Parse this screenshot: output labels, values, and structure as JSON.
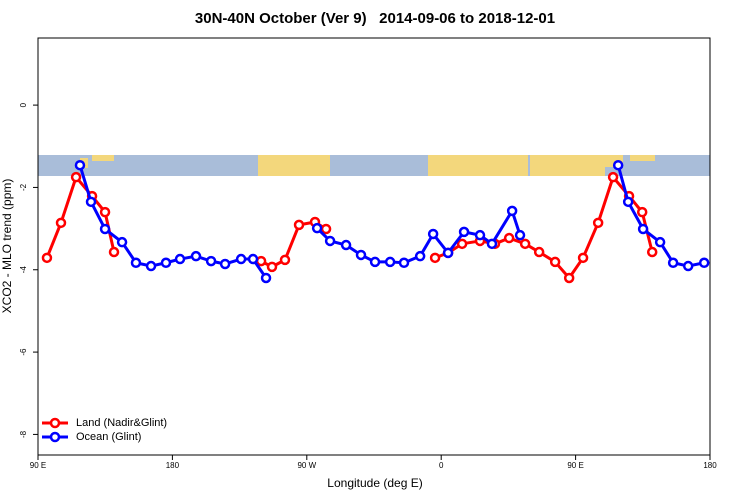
{
  "chart_data": {
    "type": "line",
    "title": "30N-40N October (Ver 9)   2014-09-06 to 2018-12-01",
    "xlabel": "Longitude (deg E)",
    "ylabel": "XCO2 - MLO trend (ppm)",
    "xlim": [
      90,
      540
    ],
    "ylim": [
      -8.5,
      1.63
    ],
    "xticks": [
      {
        "value": 90,
        "label": "90 E"
      },
      180,
      {
        "value": 270,
        "label": "90 W"
      },
      {
        "value": 360,
        "label": "0"
      },
      {
        "value": 450,
        "label": "90 E"
      },
      {
        "value": 540,
        "label": "180"
      }
    ],
    "yticks": [
      0,
      -2,
      -4,
      -6,
      -8
    ],
    "legend": "bottom-left",
    "series": [
      {
        "name": "Land (Nadir&Glint)",
        "color": "#ff0000",
        "x": [
          96,
          105.4,
          115.5,
          126.2,
          134.9,
          140.9,
          null,
          239.4,
          246.7,
          255.4,
          264.8,
          275.5,
          282.9,
          null,
          355.9,
          364.6,
          374,
          386,
          396,
          405.5,
          416.2,
          425.6,
          436.3,
          445.7,
          455,
          465.1,
          475.1,
          485.8,
          494.6,
          501.3
        ],
        "values": [
          -3.71,
          -2.86,
          -1.75,
          -2.21,
          -2.6,
          -3.57,
          null,
          -3.79,
          -3.93,
          -3.76,
          -2.91,
          -2.84,
          -3.01,
          null,
          -3.71,
          -3.59,
          -3.37,
          -3.3,
          -3.37,
          -3.23,
          -3.37,
          -3.57,
          -3.81,
          -4.2,
          -3.71,
          -2.86,
          -1.75,
          -2.21,
          -2.6,
          -3.57
        ]
      },
      {
        "name": "Ocean (Glint)",
        "color": "#0000ff",
        "x": [
          118.1,
          125.5,
          134.9,
          146.3,
          155.6,
          165.7,
          175.7,
          185.1,
          195.8,
          205.9,
          215.3,
          226,
          234,
          242.7,
          null,
          276.9,
          285.6,
          296.3,
          306.3,
          315.7,
          325.8,
          335.1,
          345.9,
          354.6,
          364.6,
          375.3,
          386,
          394,
          407.5,
          412.8,
          null,
          478.5,
          485.2,
          495.2,
          506.6,
          515.3,
          525.4,
          536.1
        ],
        "values": [
          -1.46,
          -2.35,
          -3.01,
          -3.33,
          -3.83,
          -3.91,
          -3.83,
          -3.74,
          -3.67,
          -3.79,
          -3.86,
          -3.74,
          -3.74,
          -4.2,
          null,
          -2.99,
          -3.3,
          -3.4,
          -3.64,
          -3.81,
          -3.81,
          -3.83,
          -3.67,
          -3.13,
          -3.59,
          -3.08,
          -3.16,
          -3.37,
          -2.57,
          -3.16,
          null,
          -1.46,
          -2.35,
          -3.01,
          -3.33,
          -3.83,
          -3.91,
          -3.83
        ]
      }
    ]
  }
}
